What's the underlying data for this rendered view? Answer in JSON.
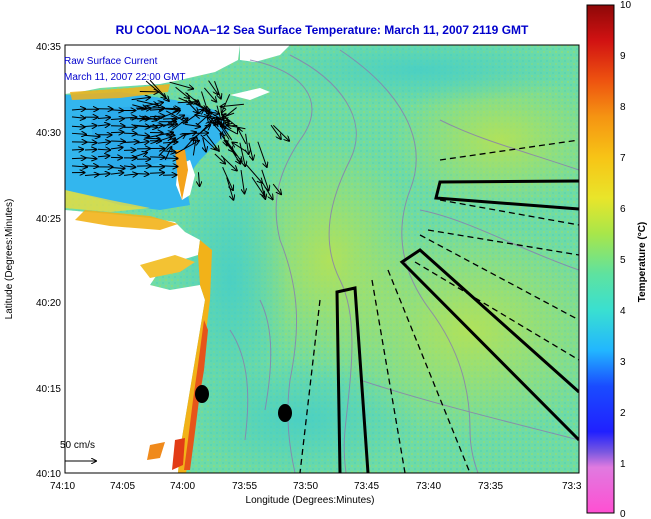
{
  "title": "RU COOL  NOAA−12  Sea Surface Temperature:  March 11, 2007 2119 GMT",
  "inset": {
    "line1": "Raw Surface Current",
    "line2": "March 11, 2007 22:00 GMT"
  },
  "scale_label": "50 cm/s",
  "xlabel": "Longitude (Degrees:Minutes)",
  "ylabel": "Latitude (Degrees:Minutes)",
  "x_ticks": [
    "74:10",
    "74:05",
    "74:00",
    "73:55",
    "73:50",
    "73:45",
    "73:40",
    "73:35",
    "73:3"
  ],
  "y_ticks": [
    "40:35",
    "40:30",
    "40:25",
    "40:20",
    "40:15",
    "40:10"
  ],
  "colorbar": {
    "label": "Temperature (°C)",
    "ticks": [
      "10",
      "9",
      "8",
      "7",
      "6",
      "5",
      "4",
      "3",
      "2",
      "1",
      "0"
    ],
    "range": [
      0,
      10
    ]
  },
  "colors": {
    "title": "#0000cc",
    "ocean_cool": "#5dd6a4",
    "ocean_warm": "#a4e05c",
    "inshore": "#36b8ef",
    "land": "#ffffff",
    "coast_warm": "#f5b21c",
    "coast_hot": "#e8501c"
  }
}
